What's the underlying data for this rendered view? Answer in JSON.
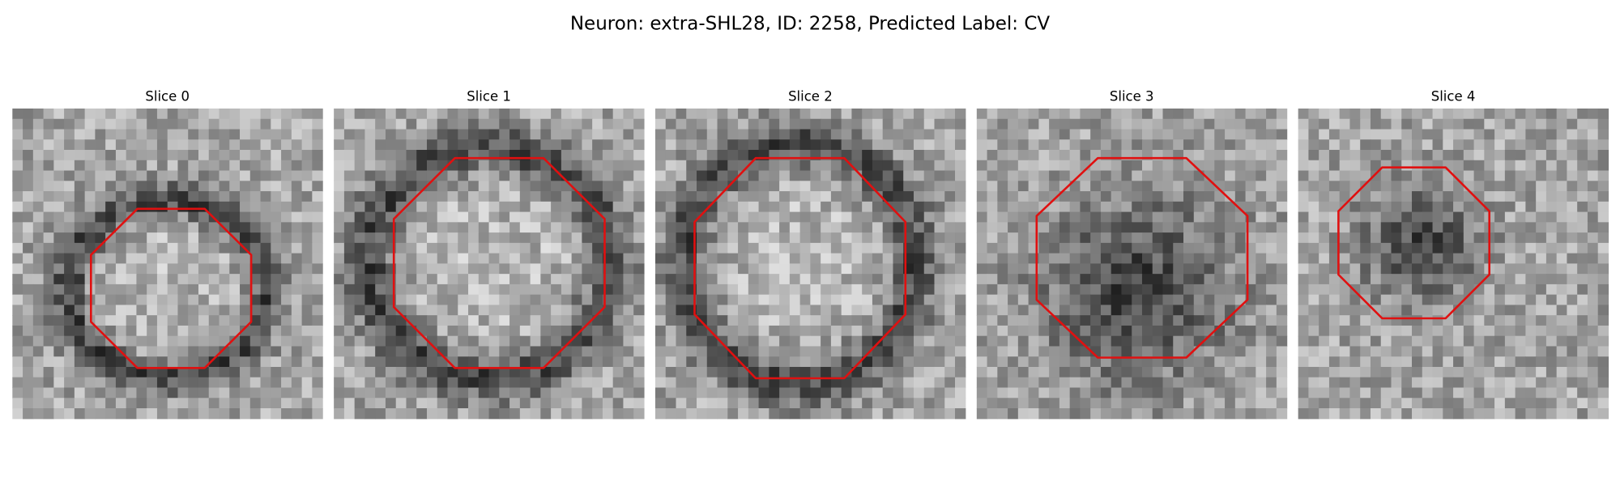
{
  "title": "Neuron: extra-SHL28, ID: 2258, Predicted Label: CV",
  "panels": [
    {
      "title": "Slice 0"
    },
    {
      "title": "Slice 1"
    },
    {
      "title": "Slice 2"
    },
    {
      "title": "Slice 3"
    },
    {
      "title": "Slice 4"
    }
  ]
}
